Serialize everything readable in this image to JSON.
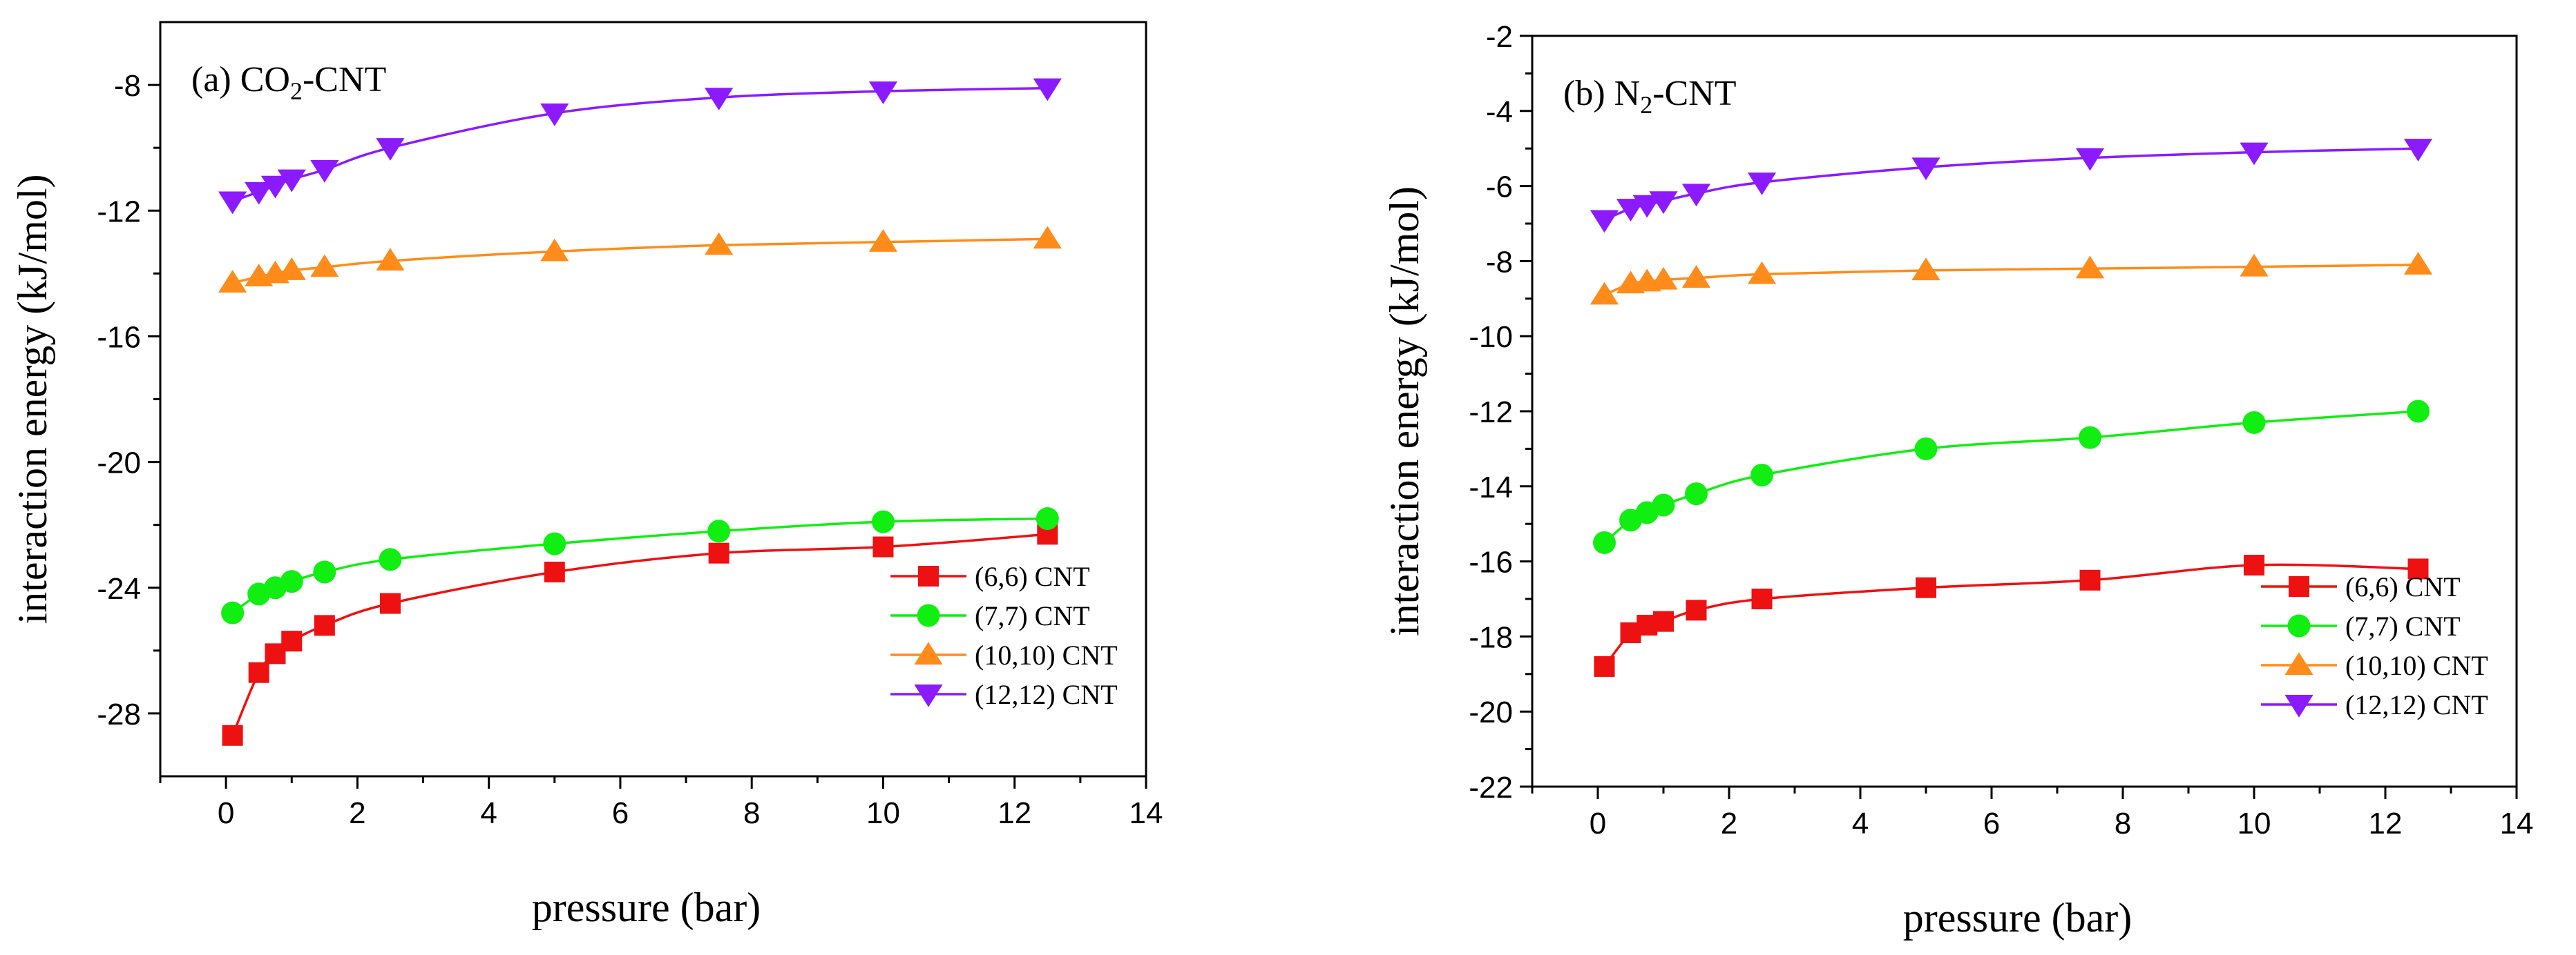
{
  "chart_data": [
    {
      "type": "line",
      "title": "(a) CO2-CNT",
      "title_main": "(a) CO",
      "title_sub": "2",
      "title_rest": "-CNT",
      "xlabel": "pressure (bar)",
      "ylabel": "interaction energy (kJ/mol)",
      "xlim": [
        -1,
        14
      ],
      "ylim": [
        -30,
        -6
      ],
      "xticks": [
        0,
        2,
        4,
        6,
        8,
        10,
        12,
        14
      ],
      "yticks": [
        -28,
        -24,
        -20,
        -16,
        -12,
        -8
      ],
      "legend_position": "bottom-right",
      "series": [
        {
          "name": "(6,6) CNT",
          "color": "#ee1111",
          "marker": "square",
          "x": [
            0.1,
            0.5,
            0.75,
            1,
            1.5,
            2.5,
            5,
            7.5,
            10,
            12.5
          ],
          "values": [
            -28.7,
            -26.7,
            -26.1,
            -25.7,
            -25.2,
            -24.5,
            -23.5,
            -22.9,
            -22.7,
            -22.3
          ]
        },
        {
          "name": "(7,7) CNT",
          "color": "#11ee11",
          "marker": "circle",
          "x": [
            0.1,
            0.5,
            0.75,
            1,
            1.5,
            2.5,
            5,
            7.5,
            10,
            12.5
          ],
          "values": [
            -24.8,
            -24.2,
            -24.0,
            -23.8,
            -23.5,
            -23.1,
            -22.6,
            -22.2,
            -21.9,
            -21.8
          ]
        },
        {
          "name": "(10,10) CNT",
          "color": "#ff8c1a",
          "marker": "triangle-up",
          "x": [
            0.1,
            0.5,
            0.75,
            1,
            1.5,
            2.5,
            5,
            7.5,
            10,
            12.5
          ],
          "values": [
            -14.3,
            -14.1,
            -14.0,
            -13.9,
            -13.8,
            -13.6,
            -13.3,
            -13.1,
            -13.0,
            -12.9
          ]
        },
        {
          "name": "(12,12) CNT",
          "color": "#8c1aff",
          "marker": "triangle-down",
          "x": [
            0.1,
            0.5,
            0.75,
            1,
            1.5,
            2.5,
            5,
            7.5,
            10,
            12.5
          ],
          "values": [
            -11.7,
            -11.4,
            -11.2,
            -11.0,
            -10.7,
            -10.0,
            -8.9,
            -8.4,
            -8.2,
            -8.1
          ]
        }
      ]
    },
    {
      "type": "line",
      "title": "(b) N2-CNT",
      "title_main": "(b) N",
      "title_sub": "2",
      "title_rest": "-CNT",
      "xlabel": "pressure (bar)",
      "ylabel": "interaction energy (kJ/mol)",
      "xlim": [
        -1,
        14
      ],
      "ylim": [
        -22,
        -2
      ],
      "xticks": [
        0,
        2,
        4,
        6,
        8,
        10,
        12,
        14
      ],
      "yticks": [
        -22,
        -20,
        -18,
        -16,
        -14,
        -12,
        -10,
        -8,
        -6,
        -4,
        -2
      ],
      "legend_position": "bottom-right",
      "series": [
        {
          "name": "(6,6) CNT",
          "color": "#ee1111",
          "marker": "square",
          "x": [
            0.1,
            0.5,
            0.75,
            1,
            1.5,
            2.5,
            5,
            7.5,
            10,
            12.5
          ],
          "values": [
            -18.8,
            -17.9,
            -17.7,
            -17.6,
            -17.3,
            -17.0,
            -16.7,
            -16.5,
            -16.1,
            -16.2
          ]
        },
        {
          "name": "(7,7) CNT",
          "color": "#11ee11",
          "marker": "circle",
          "x": [
            0.1,
            0.5,
            0.75,
            1,
            1.5,
            2.5,
            5,
            7.5,
            10,
            12.5
          ],
          "values": [
            -15.5,
            -14.9,
            -14.7,
            -14.5,
            -14.2,
            -13.7,
            -13.0,
            -12.7,
            -12.3,
            -12.0
          ]
        },
        {
          "name": "(10,10) CNT",
          "color": "#ff8c1a",
          "marker": "triangle-up",
          "x": [
            0.1,
            0.5,
            0.75,
            1,
            1.5,
            2.5,
            5,
            7.5,
            10,
            12.5
          ],
          "values": [
            -8.9,
            -8.6,
            -8.55,
            -8.5,
            -8.45,
            -8.35,
            -8.25,
            -8.2,
            -8.15,
            -8.1
          ]
        },
        {
          "name": "(12,12) CNT",
          "color": "#8c1aff",
          "marker": "triangle-down",
          "x": [
            0.1,
            0.5,
            0.75,
            1,
            1.5,
            2.5,
            5,
            7.5,
            10,
            12.5
          ],
          "values": [
            -6.9,
            -6.6,
            -6.5,
            -6.4,
            -6.2,
            -5.9,
            -5.5,
            -5.25,
            -5.1,
            -5.0
          ]
        }
      ]
    }
  ]
}
